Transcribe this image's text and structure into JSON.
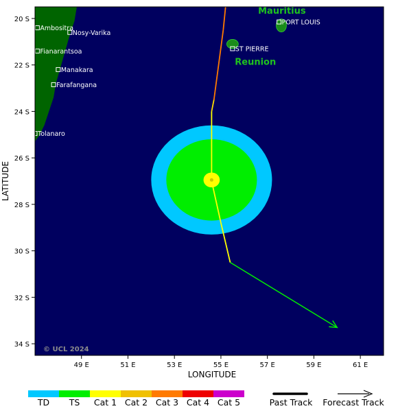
{
  "map": {
    "lon_range": [
      47.0,
      62.0
    ],
    "lat_range": [
      -19.5,
      -34.5
    ],
    "ocean_color": "#00005f",
    "land_color": "#006400",
    "x_axis_title": "LONGITUDE",
    "y_axis_title": "LATITUDE",
    "x_ticks": [
      {
        "lon": 49,
        "label": "49 E"
      },
      {
        "lon": 51,
        "label": "51 E"
      },
      {
        "lon": 53,
        "label": "53 E"
      },
      {
        "lon": 55,
        "label": "55 E"
      },
      {
        "lon": 57,
        "label": "57 E"
      },
      {
        "lon": 59,
        "label": "59 E"
      },
      {
        "lon": 61,
        "label": "61 E"
      }
    ],
    "y_ticks": [
      {
        "lat": -20,
        "label": "20 S"
      },
      {
        "lat": -22,
        "label": "22 S"
      },
      {
        "lat": -24,
        "label": "24 S"
      },
      {
        "lat": -26,
        "label": "26 S"
      },
      {
        "lat": -28,
        "label": "28 S"
      },
      {
        "lat": -30,
        "label": "30 S"
      },
      {
        "lat": -32,
        "label": "32 S"
      },
      {
        "lat": -34,
        "label": "34 S"
      }
    ],
    "madagascar_coast": [
      [
        47.0,
        -19.5
      ],
      [
        48.8,
        -19.5
      ],
      [
        48.7,
        -20.1
      ],
      [
        48.5,
        -20.7
      ],
      [
        48.3,
        -21.4
      ],
      [
        48.1,
        -22.1
      ],
      [
        47.9,
        -22.8
      ],
      [
        47.8,
        -23.4
      ],
      [
        47.6,
        -24.0
      ],
      [
        47.4,
        -24.6
      ],
      [
        47.2,
        -25.0
      ],
      [
        47.0,
        -25.3
      ]
    ],
    "cities": [
      {
        "name": "Ambositra",
        "lon": 47.1,
        "lat": -20.4
      },
      {
        "name": "Nosy-Varika",
        "lon": 48.5,
        "lat": -20.6
      },
      {
        "name": "Fianarantsoa",
        "lon": 47.1,
        "lat": -21.4
      },
      {
        "name": "Manakara",
        "lon": 48.0,
        "lat": -22.2
      },
      {
        "name": "Farafangana",
        "lon": 47.8,
        "lat": -22.85
      },
      {
        "name": "Tolanaro",
        "lon": 47.0,
        "lat": -24.95
      },
      {
        "name": "PORT LOUIS",
        "lon": 57.5,
        "lat": -20.15
      },
      {
        "name": "ST PIERRE",
        "lon": 55.5,
        "lat": -21.3
      }
    ],
    "islands": [
      {
        "name": "Mauritius",
        "lon": 57.6,
        "lat": -20.3,
        "rx": 0.22,
        "ry": 0.28
      },
      {
        "name": "Reunion",
        "lon": 55.5,
        "lat": -21.1,
        "rx": 0.25,
        "ry": 0.2
      }
    ],
    "island_labels": [
      {
        "text": "Mauritius",
        "lon": 56.6,
        "lat": -19.8
      },
      {
        "text": "Reunion",
        "lon": 55.6,
        "lat": -22.0
      }
    ],
    "copyright": "© UCL 2024"
  },
  "chart_data": {
    "type": "map",
    "storm": {
      "center_lon": 54.6,
      "center_lat": -26.95,
      "wind_radii": [
        {
          "category": "TD",
          "color": "#00c8ff",
          "radius_lon": 2.6,
          "radius_lat": 2.35
        },
        {
          "category": "TS",
          "color": "#00ee00",
          "radius_lon": 1.95,
          "radius_lat": 1.75
        },
        {
          "category": "Cat 1",
          "color": "#ffff00",
          "radius_lon": 0.35,
          "radius_lat": 0.32
        }
      ]
    },
    "track": [
      {
        "lon": 55.2,
        "lat": -19.5,
        "color": "#ff7a00"
      },
      {
        "lon": 55.1,
        "lat": -20.5,
        "color": "#ff7a00"
      },
      {
        "lon": 54.7,
        "lat": -23.5,
        "color": "#ff7a00"
      },
      {
        "lon": 54.6,
        "lat": -24.0,
        "color": "#ffdd00"
      },
      {
        "lon": 54.6,
        "lat": -27.0,
        "color": "#ffff00"
      },
      {
        "lon": 55.0,
        "lat": -28.8,
        "color": "#ffff00"
      },
      {
        "lon": 55.4,
        "lat": -30.5,
        "color": "#ffff00"
      }
    ],
    "forecast_track": [
      {
        "lon": 55.4,
        "lat": -30.5
      },
      {
        "lon": 60.0,
        "lat": -33.3
      }
    ],
    "forecast_color": "#00ee00"
  },
  "legend": {
    "categories": [
      {
        "label": "TD",
        "color": "#00c8ff"
      },
      {
        "label": "TS",
        "color": "#00ee00"
      },
      {
        "label": "Cat 1",
        "color": "#ffff00"
      },
      {
        "label": "Cat 2",
        "color": "#f0c000"
      },
      {
        "label": "Cat 3",
        "color": "#ff7a00"
      },
      {
        "label": "Cat 4",
        "color": "#ee0000"
      },
      {
        "label": "Cat 5",
        "color": "#cc00cc"
      }
    ],
    "past_track_label": "Past Track",
    "forecast_track_label": "Forecast Track"
  }
}
